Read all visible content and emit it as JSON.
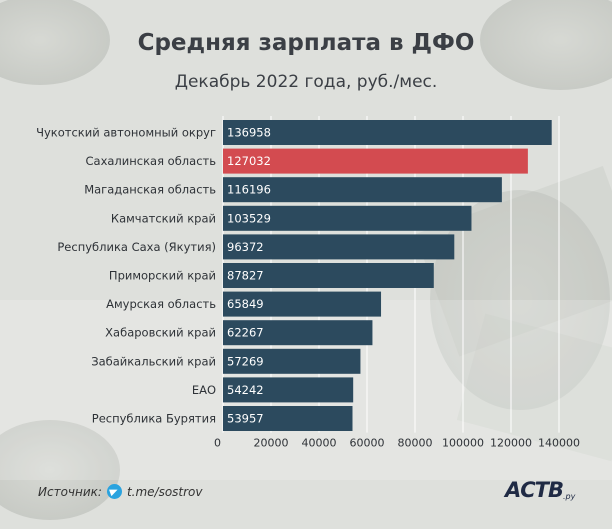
{
  "title": "Средняя зарплата в ДФО",
  "subtitle": "Декабрь 2022 года, руб./мес.",
  "colors": {
    "bar": "#2c4a5e",
    "highlight": "#d34b50",
    "background": "#d7dad4"
  },
  "chart_data": {
    "type": "bar",
    "orientation": "horizontal",
    "title": "Средняя зарплата в ДФО",
    "subtitle": "Декабрь 2022 года, руб./мес.",
    "categories": [
      "Чукотский автономный округ",
      "Сахалинская область",
      "Магаданская область",
      "Камчатский край",
      "Республика Саха (Якутия)",
      "Приморский край",
      "Амурская область",
      "Хабаровский край",
      "Забайкальский край",
      "ЕАО",
      "Республика Бурятия"
    ],
    "values": [
      136958,
      127032,
      116196,
      103529,
      96372,
      87827,
      65849,
      62267,
      57269,
      54242,
      53957
    ],
    "value_labels": [
      "136958",
      "127032",
      "116196",
      "103529",
      "96372",
      "87827",
      "65849",
      "62267",
      "57269",
      "54242",
      "53957"
    ],
    "highlight_index": 1,
    "xlim": [
      0,
      150000
    ],
    "x_ticks": [
      0,
      20000,
      40000,
      60000,
      80000,
      100000,
      120000,
      140000
    ],
    "x_tick_labels": [
      "0",
      "20000",
      "40000",
      "60000",
      "80000",
      "100000",
      "120000",
      "140000"
    ],
    "grid": true
  },
  "footer": {
    "source_label": "Источник:",
    "source_link": "t.me/sostrov"
  },
  "logo": {
    "text": "АСТВ",
    "suffix": ".ру"
  }
}
